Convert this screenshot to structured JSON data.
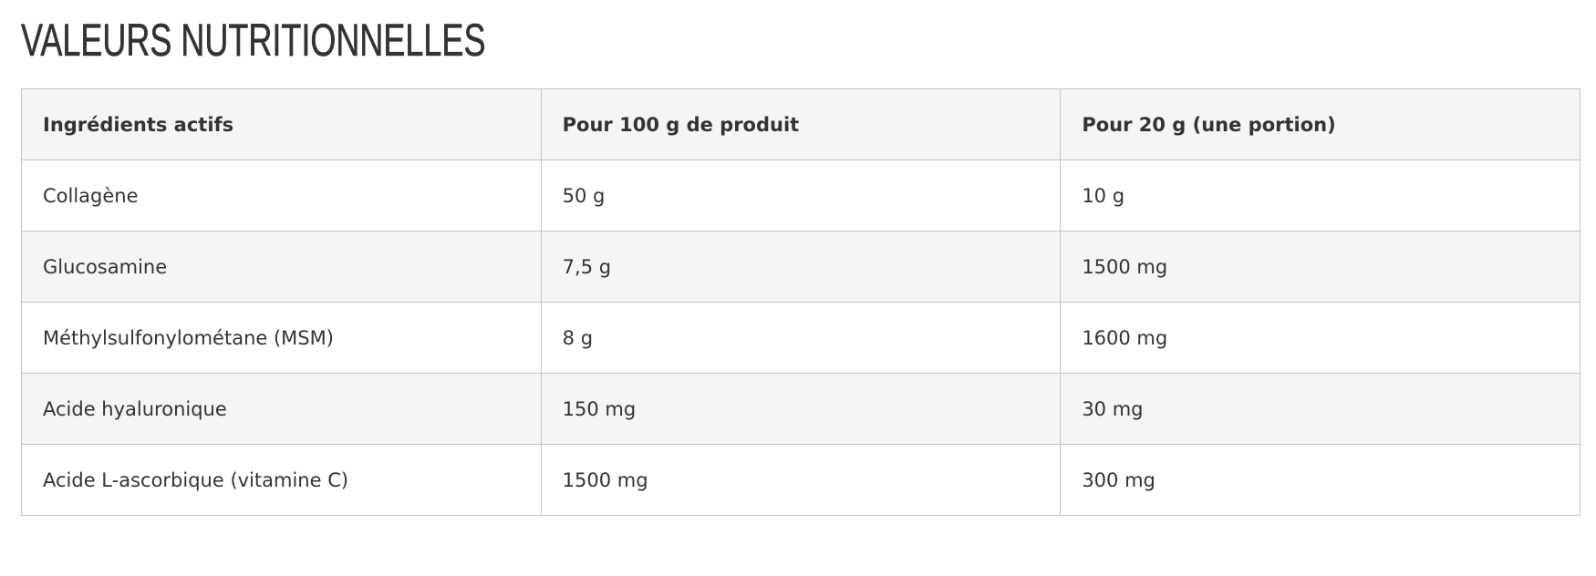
{
  "title": "VALEURS NUTRITIONNELLES",
  "table": {
    "headers": [
      "Ingrédients actifs",
      "Pour 100 g de produit",
      "Pour 20 g (une portion)"
    ],
    "rows": [
      [
        "Collagène",
        "50 g",
        "10 g"
      ],
      [
        "Glucosamine",
        "7,5 g",
        "1500 mg"
      ],
      [
        "Méthylsulfonylométane (MSM)",
        "8 g",
        "1600 mg"
      ],
      [
        "Acide hyaluronique",
        "150 mg",
        "30 mg"
      ],
      [
        "Acide L-ascorbique (vitamine C)",
        "1500 mg",
        "300 mg"
      ]
    ]
  },
  "colors": {
    "header_bg": "#f5f5f5",
    "border": "#c4c4c4",
    "text": "#333333"
  }
}
